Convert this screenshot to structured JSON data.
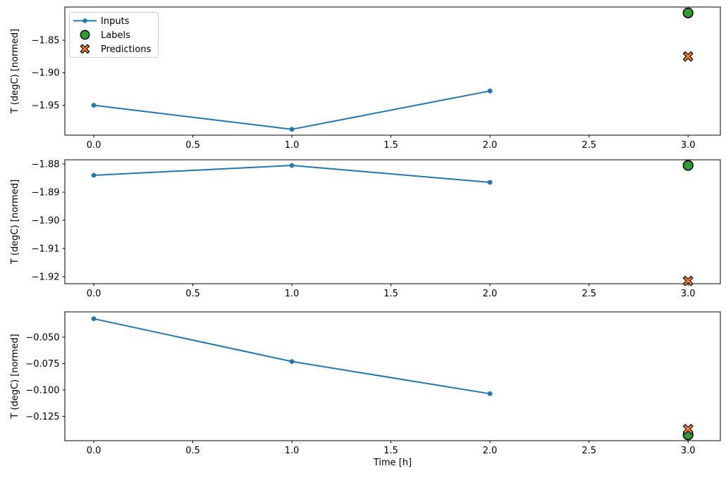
{
  "figure": {
    "xlabel": "Time [h]",
    "x_ticks": [
      0.0,
      0.5,
      1.0,
      1.5,
      2.0,
      2.5,
      3.0
    ],
    "x_tick_decimals": 1,
    "xlim": [
      -0.146,
      3.163
    ],
    "background": "#ffffff",
    "colors": {
      "inputs": "#1f77b4",
      "labels": "#2ca02c",
      "predictions": "#ff7f0e",
      "marker_edge": "#000000",
      "axis": "#000000",
      "legend_border": "#cccccc"
    },
    "legend": {
      "position": "upper-left",
      "entries": [
        {
          "label": "Inputs",
          "marker": "line-dot",
          "color": "#1f77b4"
        },
        {
          "label": "Labels",
          "marker": "circle",
          "color": "#2ca02c"
        },
        {
          "label": "Predictions",
          "marker": "x",
          "color": "#ff7f0e"
        }
      ]
    }
  },
  "chart_data": [
    {
      "type": "line",
      "title": "",
      "xlabel": "",
      "ylabel": "T (degC) [normed]",
      "ylim": [
        -1.996,
        -1.799
      ],
      "yticks": [
        -1.85,
        -1.9,
        -1.95
      ],
      "ytick_decimals": 2,
      "grid": false,
      "series": [
        {
          "name": "Inputs",
          "style": "line-dot",
          "color": "#1f77b4",
          "x": [
            0,
            1,
            2
          ],
          "y": [
            -1.95,
            -1.987,
            -1.928
          ]
        },
        {
          "name": "Labels",
          "style": "circle",
          "color": "#2ca02c",
          "x": [
            3
          ],
          "y": [
            -1.808
          ]
        },
        {
          "name": "Predictions",
          "style": "x",
          "color": "#ff7f0e",
          "x": [
            3
          ],
          "y": [
            -1.875
          ]
        }
      ]
    },
    {
      "type": "line",
      "title": "",
      "xlabel": "",
      "ylabel": "T (degC) [normed]",
      "ylim": [
        -1.9225,
        -1.8785
      ],
      "yticks": [
        -1.88,
        -1.89,
        -1.9,
        -1.91,
        -1.92
      ],
      "ytick_decimals": 2,
      "grid": false,
      "series": [
        {
          "name": "Inputs",
          "style": "line-dot",
          "color": "#1f77b4",
          "x": [
            0,
            1,
            2
          ],
          "y": [
            -1.884,
            -1.8805,
            -1.8865
          ]
        },
        {
          "name": "Labels",
          "style": "circle",
          "color": "#2ca02c",
          "x": [
            3
          ],
          "y": [
            -1.8805
          ]
        },
        {
          "name": "Predictions",
          "style": "x",
          "color": "#ff7f0e",
          "x": [
            3
          ],
          "y": [
            -1.9215
          ]
        }
      ]
    },
    {
      "type": "line",
      "title": "",
      "xlabel": "Time [h]",
      "ylabel": "T (degC) [normed]",
      "ylim": [
        -0.148,
        -0.026
      ],
      "yticks": [
        -0.05,
        -0.075,
        -0.1,
        -0.125
      ],
      "ytick_decimals": 3,
      "grid": false,
      "series": [
        {
          "name": "Inputs",
          "style": "line-dot",
          "color": "#1f77b4",
          "x": [
            0,
            1,
            2
          ],
          "y": [
            -0.0325,
            -0.073,
            -0.1035
          ]
        },
        {
          "name": "Labels",
          "style": "circle",
          "color": "#2ca02c",
          "x": [
            3
          ],
          "y": [
            -0.1425
          ]
        },
        {
          "name": "Predictions",
          "style": "x",
          "color": "#ff7f0e",
          "x": [
            3
          ],
          "y": [
            -0.137
          ]
        }
      ]
    }
  ]
}
